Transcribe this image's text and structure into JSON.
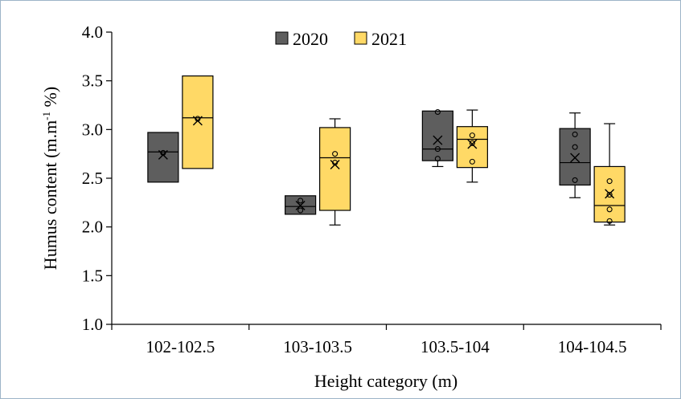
{
  "chart_data": {
    "type": "box",
    "xlabel": "Height category (m)",
    "ylabel_main": "Humus content (m.m",
    "ylabel_sup": "-1",
    "ylabel_end": " %)",
    "ylim": [
      1.0,
      4.0
    ],
    "yticks": [
      "1.0",
      "1.5",
      "2.0",
      "2.5",
      "3.0",
      "3.5",
      "4.0"
    ],
    "categories": [
      "102-102.5",
      "103-103.5",
      "103.5-104",
      "104-104.5"
    ],
    "legend_position": "top-center",
    "series": [
      {
        "name": "2020",
        "color": "#5e5e5e",
        "boxes": [
          {
            "min": 2.46,
            "q1": 2.46,
            "median": 2.77,
            "q3": 2.97,
            "max": 2.97,
            "mean": 2.74,
            "points": [
              2.76
            ]
          },
          {
            "min": 2.13,
            "q1": 2.13,
            "median": 2.21,
            "q3": 2.32,
            "max": 2.32,
            "mean": 2.22,
            "points": [
              2.27,
              2.17
            ]
          },
          {
            "min": 2.62,
            "q1": 2.68,
            "median": 2.8,
            "q3": 3.19,
            "max": 3.19,
            "mean": 2.89,
            "points": [
              3.18,
              2.8,
              2.7
            ]
          },
          {
            "min": 2.3,
            "q1": 2.43,
            "median": 2.66,
            "q3": 3.01,
            "max": 3.17,
            "mean": 2.71,
            "points": [
              2.95,
              2.82,
              2.48
            ]
          }
        ]
      },
      {
        "name": "2021",
        "color": "#ffd966",
        "boxes": [
          {
            "min": 2.6,
            "q1": 2.6,
            "median": 3.12,
            "q3": 3.55,
            "max": 3.55,
            "mean": 3.09,
            "points": [
              3.11
            ]
          },
          {
            "min": 2.02,
            "q1": 2.17,
            "median": 2.71,
            "q3": 3.02,
            "max": 3.11,
            "mean": 2.64,
            "points": [
              2.75,
              2.66
            ]
          },
          {
            "min": 2.46,
            "q1": 2.61,
            "median": 2.9,
            "q3": 3.03,
            "max": 3.2,
            "mean": 2.85,
            "points": [
              2.94,
              2.86,
              2.67
            ]
          },
          {
            "min": 2.02,
            "q1": 2.05,
            "median": 2.22,
            "q3": 2.62,
            "max": 3.06,
            "mean": 2.34,
            "points": [
              2.47,
              2.33,
              2.18,
              2.06
            ]
          }
        ]
      }
    ]
  }
}
